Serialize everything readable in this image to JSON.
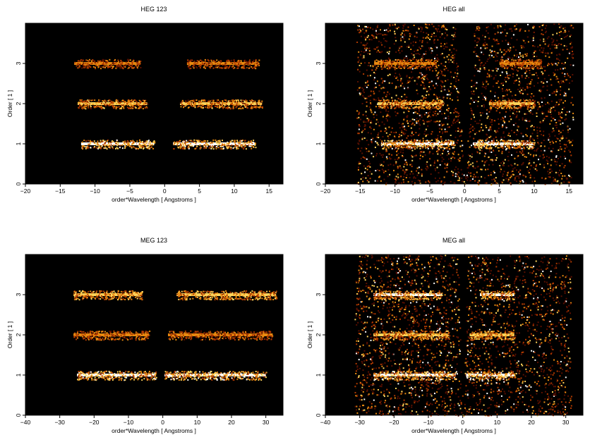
{
  "chart_data": [
    {
      "type": "heatmap",
      "title": "HEG 123",
      "xlabel": "order*Wavelength [ Angstroms ]",
      "ylabel": "Order [ 1 ]",
      "xlim": [
        -20,
        17
      ],
      "ylim": [
        0,
        4
      ],
      "xticks": [
        -20,
        -15,
        -10,
        -5,
        0,
        5,
        10,
        15
      ],
      "yticks": [
        0,
        1,
        2,
        3
      ],
      "colormap": [
        "#000000",
        "#5a0f00",
        "#b03a00",
        "#e88a10",
        "#ffd35a",
        "#ffffff"
      ],
      "bands": [
        {
          "order": 1,
          "x_ranges": [
            [
              -12,
              -1.5
            ],
            [
              1.2,
              13
            ]
          ],
          "intensity": 1.0
        },
        {
          "order": 2,
          "x_ranges": [
            [
              -12.5,
              -2.5
            ],
            [
              2.2,
              14
            ]
          ],
          "intensity": 0.75
        },
        {
          "order": 3,
          "x_ranges": [
            [
              -13,
              -3.5
            ],
            [
              3.2,
              13.5
            ]
          ],
          "intensity": 0.6
        }
      ]
    },
    {
      "type": "heatmap",
      "title": "HEG all",
      "xlabel": "order*Wavelength [ Angstroms ]",
      "ylabel": "Order [ 1 ]",
      "xlim": [
        -20,
        17
      ],
      "ylim": [
        0,
        4
      ],
      "xticks": [
        -20,
        -15,
        -10,
        -5,
        0,
        5,
        10,
        15
      ],
      "yticks": [
        0,
        1,
        2,
        3
      ],
      "colormap": [
        "#000000",
        "#5a0f00",
        "#b03a00",
        "#e88a10",
        "#ffd35a",
        "#ffffff"
      ],
      "bands": [
        {
          "order": 1,
          "x_ranges": [
            [
              -12,
              -1.5
            ],
            [
              1.2,
              10
            ]
          ],
          "intensity": 1.0
        },
        {
          "order": 2,
          "x_ranges": [
            [
              -12.5,
              -3
            ],
            [
              3.5,
              10
            ]
          ],
          "intensity": 0.8
        },
        {
          "order": 3,
          "x_ranges": [
            [
              -13,
              -4
            ],
            [
              5,
              11
            ]
          ],
          "intensity": 0.65
        }
      ]
    },
    {
      "type": "heatmap",
      "title": "MEG 123",
      "xlabel": "order*Wavelength [ Angstroms ]",
      "ylabel": "Order [ 1 ]",
      "xlim": [
        -40,
        35
      ],
      "ylim": [
        0,
        4
      ],
      "xticks": [
        -40,
        -30,
        -20,
        -10,
        0,
        10,
        20,
        30
      ],
      "yticks": [
        0,
        1,
        2,
        3
      ],
      "colormap": [
        "#000000",
        "#5a0f00",
        "#b03a00",
        "#e88a10",
        "#ffd35a",
        "#ffffff"
      ],
      "bands": [
        {
          "order": 1,
          "x_ranges": [
            [
              -25,
              -2
            ],
            [
              0.5,
              30
            ]
          ],
          "intensity": 1.0
        },
        {
          "order": 2,
          "x_ranges": [
            [
              -26,
              -4
            ],
            [
              1.5,
              32
            ]
          ],
          "intensity": 0.65
        },
        {
          "order": 3,
          "x_ranges": [
            [
              -26,
              -6
            ],
            [
              4,
              33
            ]
          ],
          "intensity": 0.85
        }
      ]
    },
    {
      "type": "heatmap",
      "title": "MEG all",
      "xlabel": "order*Wavelength [ Angstroms ]",
      "ylabel": "Order [ 1 ]",
      "xlim": [
        -40,
        35
      ],
      "ylim": [
        0,
        4
      ],
      "xticks": [
        -40,
        -30,
        -20,
        -10,
        0,
        10,
        20,
        30
      ],
      "yticks": [
        0,
        1,
        2,
        3
      ],
      "colormap": [
        "#000000",
        "#5a0f00",
        "#b03a00",
        "#e88a10",
        "#ffd35a",
        "#ffffff"
      ],
      "bands": [
        {
          "order": 1,
          "x_ranges": [
            [
              -26,
              -2
            ],
            [
              1,
              15
            ]
          ],
          "intensity": 1.0
        },
        {
          "order": 2,
          "x_ranges": [
            [
              -26,
              -4
            ],
            [
              2,
              15
            ]
          ],
          "intensity": 0.8
        },
        {
          "order": 3,
          "x_ranges": [
            [
              -26,
              -6
            ],
            [
              5,
              15
            ]
          ],
          "intensity": 0.9
        }
      ]
    }
  ]
}
